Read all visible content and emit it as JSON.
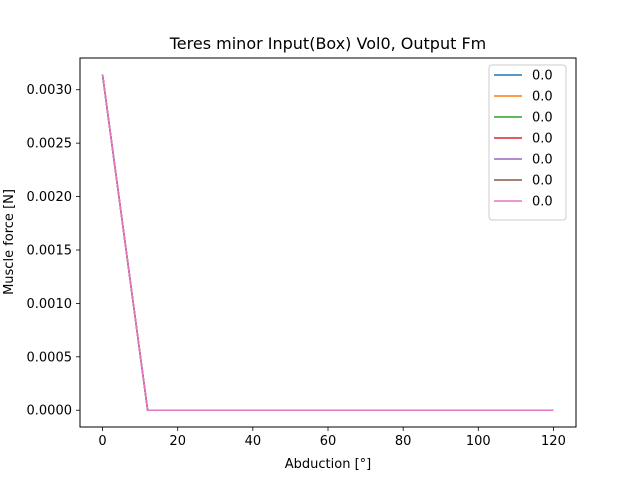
{
  "chart_data": {
    "type": "line",
    "title": "Teres minor Input(Box) Vol0, Output Fm",
    "xlabel": "Abduction [°]",
    "ylabel": "Muscle force [N]",
    "xlim": [
      -6,
      126
    ],
    "ylim": [
      -0.000157,
      0.003297
    ],
    "xticks": [
      0,
      20,
      40,
      60,
      80,
      100,
      120
    ],
    "yticks": [
      0.0,
      0.0005,
      0.001,
      0.0015,
      0.002,
      0.0025,
      0.003
    ],
    "ytick_labels": [
      "0.0000",
      "0.0005",
      "0.0010",
      "0.0015",
      "0.0020",
      "0.0025",
      "0.0030"
    ],
    "grid": false,
    "legend_position": "upper right",
    "x": [
      0,
      12,
      24,
      36,
      48,
      60,
      72,
      84,
      96,
      108,
      120
    ],
    "series": [
      {
        "name": "0.0",
        "color": "#1f77b4",
        "values": [
          0.00314,
          0,
          0,
          0,
          0,
          0,
          0,
          0,
          0,
          0,
          0
        ]
      },
      {
        "name": "0.0",
        "color": "#ff7f0e",
        "values": [
          0.00314,
          0,
          0,
          0,
          0,
          0,
          0,
          0,
          0,
          0,
          0
        ]
      },
      {
        "name": "0.0",
        "color": "#2ca02c",
        "values": [
          0.00314,
          0,
          0,
          0,
          0,
          0,
          0,
          0,
          0,
          0,
          0
        ]
      },
      {
        "name": "0.0",
        "color": "#d62728",
        "values": [
          0.00314,
          0,
          0,
          0,
          0,
          0,
          0,
          0,
          0,
          0,
          0
        ]
      },
      {
        "name": "0.0",
        "color": "#9467bd",
        "values": [
          0.00314,
          0,
          0,
          0,
          0,
          0,
          0,
          0,
          0,
          0,
          0
        ]
      },
      {
        "name": "0.0",
        "color": "#8c564b",
        "values": [
          0.00314,
          0,
          0,
          0,
          0,
          0,
          0,
          0,
          0,
          0,
          0
        ]
      },
      {
        "name": "0.0",
        "color": "#e377c2",
        "values": [
          0.00314,
          0,
          0,
          0,
          0,
          0,
          0,
          0,
          0,
          0,
          0
        ]
      }
    ]
  }
}
